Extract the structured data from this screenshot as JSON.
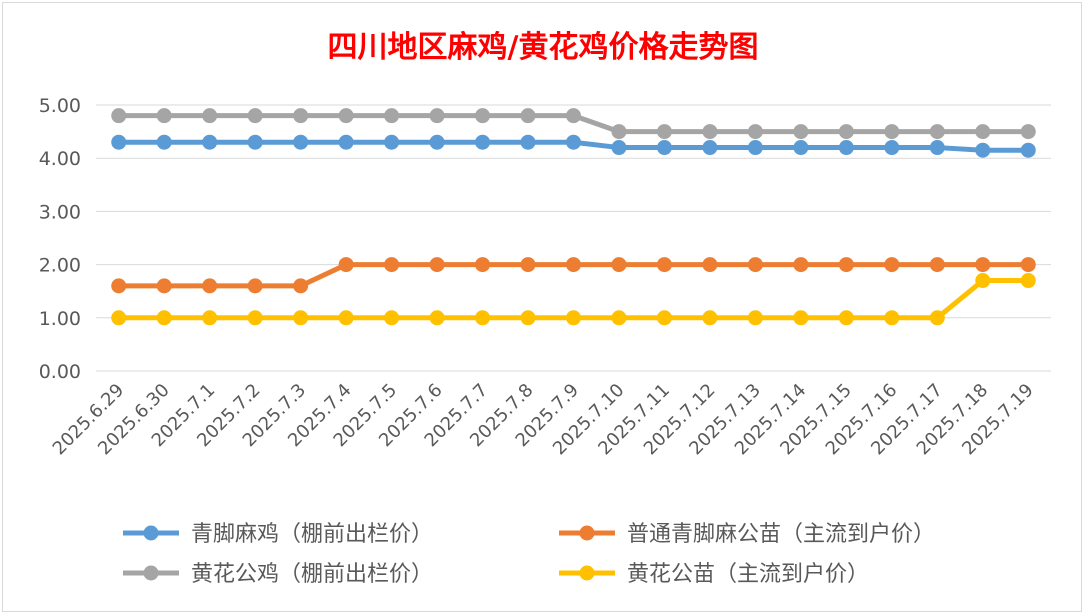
{
  "chart_data": {
    "type": "line",
    "title": "四川地区麻鸡/黄花鸡价格走势图",
    "xlabel": "",
    "ylabel": "",
    "ylim": [
      0,
      5
    ],
    "yticks": [
      "0.00",
      "1.00",
      "2.00",
      "3.00",
      "4.00",
      "5.00"
    ],
    "categories": [
      "2025.6.29",
      "2025.6.30",
      "2025.7.1",
      "2025.7.2",
      "2025.7.3",
      "2025.7.4",
      "2025.7.5",
      "2025.7.6",
      "2025.7.7",
      "2025.7.8",
      "2025.7.9",
      "2025.7.10",
      "2025.7.11",
      "2025.7.12",
      "2025.7.13",
      "2025.7.14",
      "2025.7.15",
      "2025.7.16",
      "2025.7.17",
      "2025.7.18",
      "2025.7.19"
    ],
    "grid": true,
    "legend_position": "bottom",
    "series": [
      {
        "name": "青脚麻鸡（棚前出栏价）",
        "color": "#5b9bd5",
        "values": [
          4.3,
          4.3,
          4.3,
          4.3,
          4.3,
          4.3,
          4.3,
          4.3,
          4.3,
          4.3,
          4.3,
          4.2,
          4.2,
          4.2,
          4.2,
          4.2,
          4.2,
          4.2,
          4.2,
          4.15,
          4.15
        ]
      },
      {
        "name": "普通青脚麻公苗（主流到户价）",
        "color": "#ed7d31",
        "values": [
          1.6,
          1.6,
          1.6,
          1.6,
          1.6,
          2.0,
          2.0,
          2.0,
          2.0,
          2.0,
          2.0,
          2.0,
          2.0,
          2.0,
          2.0,
          2.0,
          2.0,
          2.0,
          2.0,
          2.0,
          2.0
        ]
      },
      {
        "name": "黄花公鸡（棚前出栏价）",
        "color": "#a5a5a5",
        "values": [
          4.8,
          4.8,
          4.8,
          4.8,
          4.8,
          4.8,
          4.8,
          4.8,
          4.8,
          4.8,
          4.8,
          4.5,
          4.5,
          4.5,
          4.5,
          4.5,
          4.5,
          4.5,
          4.5,
          4.5,
          4.5
        ]
      },
      {
        "name": "黄花公苗（主流到户价）",
        "color": "#ffc000",
        "values": [
          1.0,
          1.0,
          1.0,
          1.0,
          1.0,
          1.0,
          1.0,
          1.0,
          1.0,
          1.0,
          1.0,
          1.0,
          1.0,
          1.0,
          1.0,
          1.0,
          1.0,
          1.0,
          1.0,
          1.7,
          1.7
        ]
      }
    ]
  }
}
